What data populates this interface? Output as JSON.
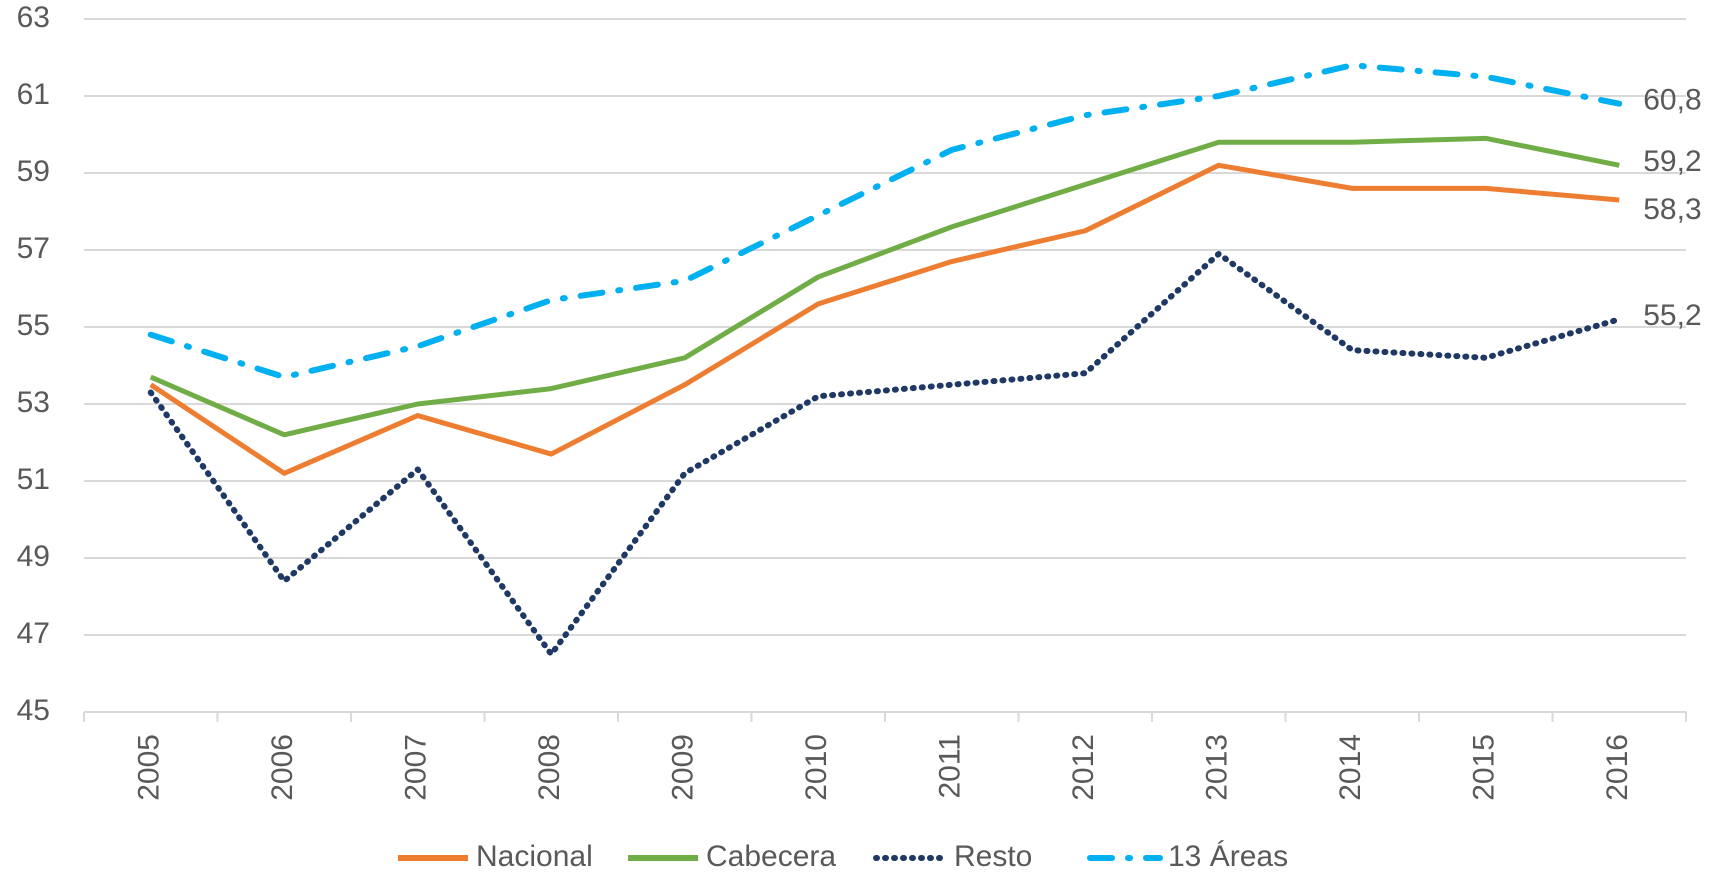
{
  "chart_data": {
    "type": "line",
    "categories": [
      "2005",
      "2006",
      "2007",
      "2008",
      "2009",
      "2010",
      "2011",
      "2012",
      "2013",
      "2014",
      "2015",
      "2016"
    ],
    "series": [
      {
        "name": "Nacional",
        "color": "#ED7D31",
        "dash": "solid",
        "values": [
          53.5,
          51.2,
          52.7,
          51.7,
          53.5,
          55.6,
          56.7,
          57.5,
          59.2,
          58.6,
          58.6,
          58.3
        ],
        "value_labels": [
          null,
          null,
          null,
          null,
          null,
          null,
          null,
          null,
          null,
          null,
          null,
          "58,3"
        ]
      },
      {
        "name": "Cabecera",
        "color": "#70AD47",
        "dash": "solid",
        "values": [
          53.7,
          52.2,
          53.0,
          53.4,
          54.2,
          56.3,
          57.6,
          58.7,
          59.8,
          59.8,
          59.9,
          59.2
        ],
        "value_labels": [
          null,
          null,
          null,
          null,
          null,
          null,
          null,
          null,
          null,
          null,
          null,
          "59,2"
        ]
      },
      {
        "name": "Resto",
        "color": "#1F3864",
        "dash": "dot",
        "values": [
          53.3,
          48.4,
          51.3,
          46.5,
          51.2,
          53.2,
          53.5,
          53.8,
          56.9,
          54.4,
          54.2,
          55.2
        ],
        "value_labels": [
          null,
          null,
          null,
          null,
          null,
          null,
          null,
          null,
          null,
          null,
          null,
          "55,2"
        ]
      },
      {
        "name": "13 Áreas",
        "color": "#00B0F0",
        "dash": "dashdot",
        "values": [
          54.8,
          53.7,
          54.5,
          55.7,
          56.2,
          57.9,
          59.6,
          60.5,
          61.0,
          61.8,
          61.5,
          60.8
        ],
        "value_labels": [
          null,
          null,
          null,
          null,
          null,
          null,
          null,
          null,
          null,
          null,
          null,
          "60,8"
        ]
      }
    ],
    "ylim": [
      45,
      63
    ],
    "yticks": [
      45,
      47,
      49,
      51,
      53,
      55,
      57,
      59,
      61,
      63
    ],
    "grid": true,
    "legend": "bottom"
  }
}
